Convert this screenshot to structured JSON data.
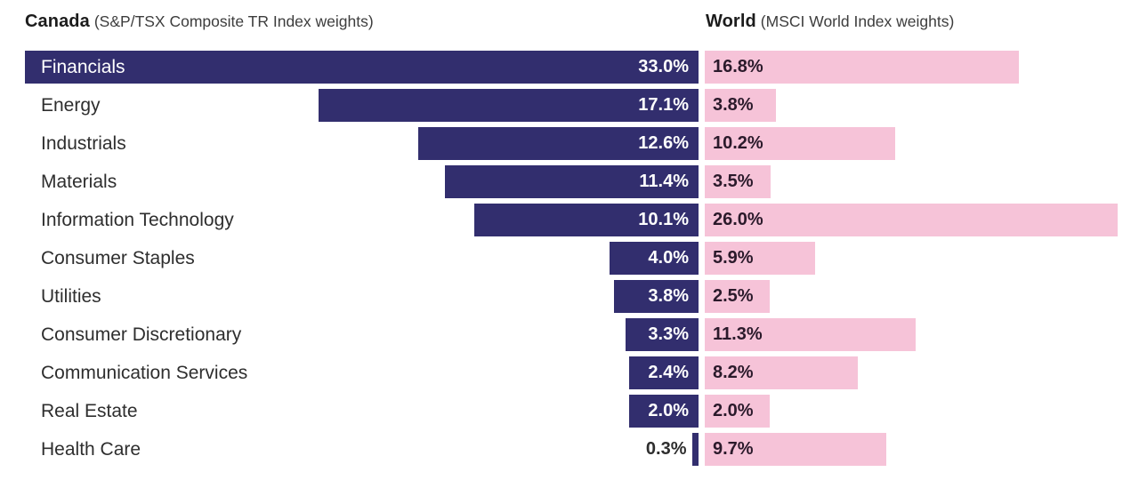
{
  "header": {
    "canada": {
      "title": "Canada",
      "subtitle": "(S&P/TSX Composite TR Index weights)"
    },
    "world": {
      "title": "World",
      "subtitle": "(MSCI World Index weights)"
    }
  },
  "colors": {
    "canada_bar": "#322e6e",
    "world_bar": "#f6c3d8",
    "canada_value_text": "#ffffff",
    "world_value_text": "#2b1a2b",
    "sector_label_text": "#2e2e2e",
    "background": "#ffffff"
  },
  "chart_data": {
    "type": "bar",
    "orientation": "horizontal",
    "layout": "paired back-to-back bars: Canada bars right-aligned against central divider, World bars extend rightward from divider; sector name labels on far left; value labels printed on bars",
    "grid": false,
    "value_unit": "%",
    "categories": [
      "Financials",
      "Energy",
      "Industrials",
      "Materials",
      "Information Technology",
      "Consumer Staples",
      "Utilities",
      "Consumer Discretionary",
      "Communication Services",
      "Real Estate",
      "Health Care"
    ],
    "series": [
      {
        "name": "Canada (S&P/TSX Composite TR Index weights)",
        "color": "#322e6e",
        "values": [
          33.0,
          17.1,
          12.6,
          11.4,
          10.1,
          4.0,
          3.8,
          3.3,
          2.4,
          2.0,
          0.3
        ],
        "labels": [
          "33.0%",
          "17.1%",
          "12.6%",
          "11.4%",
          "10.1%",
          "4.0%",
          "3.8%",
          "3.3%",
          "2.4%",
          "2.0%",
          "0.3%"
        ]
      },
      {
        "name": "World (MSCI World Index weights)",
        "color": "#f6c3d8",
        "values": [
          16.8,
          3.8,
          10.2,
          3.5,
          26.0,
          5.9,
          2.5,
          11.3,
          8.2,
          2.0,
          9.7
        ],
        "labels": [
          "16.8%",
          "3.8%",
          "10.2%",
          "3.5%",
          "26.0%",
          "5.9%",
          "2.5%",
          "11.3%",
          "8.2%",
          "2.0%",
          "9.7%"
        ]
      }
    ]
  }
}
